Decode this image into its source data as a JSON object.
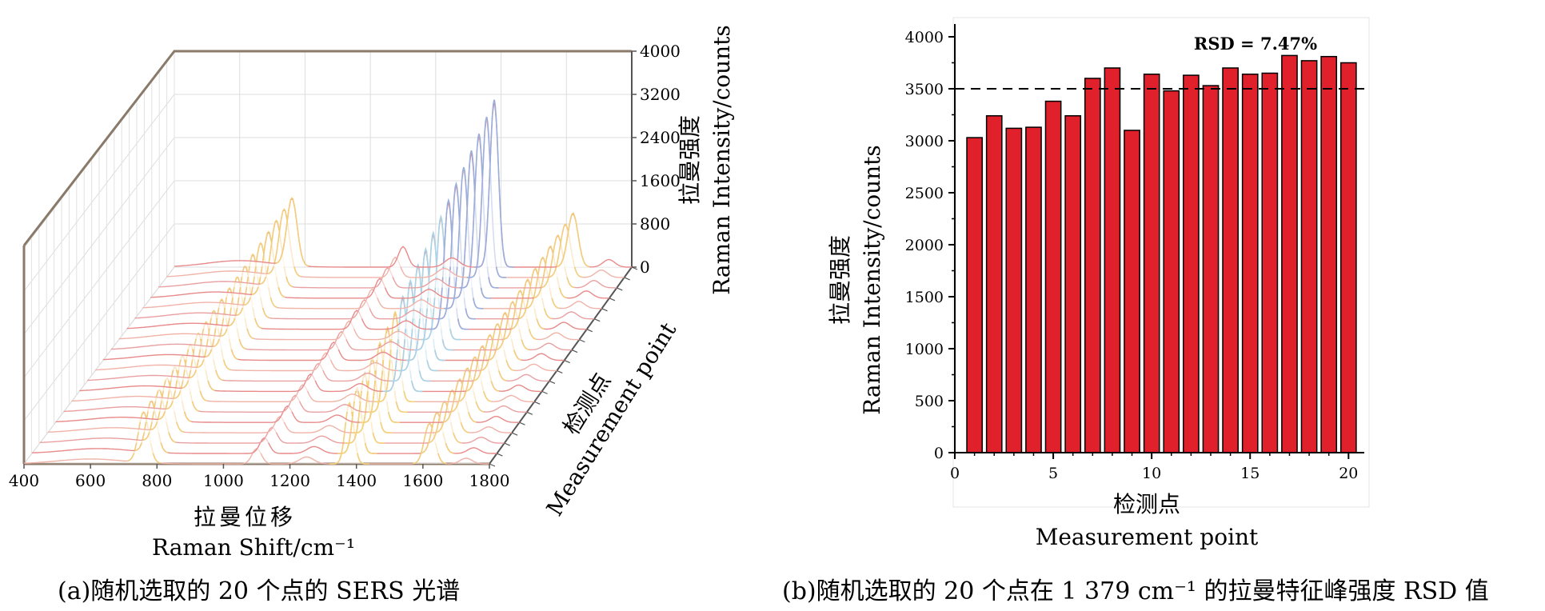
{
  "chart_data": [
    {
      "type": "waterfall-spectra",
      "x_tick_labels": [
        "400",
        "600",
        "800",
        "1000",
        "1200",
        "1400",
        "1600",
        "1800"
      ],
      "z_tick_labels": [
        "0",
        "800",
        "1600",
        "2400",
        "3200",
        "4000"
      ],
      "xlabel_cn": "拉曼位移",
      "xlabel_en": "Raman Shift/cm⁻¹",
      "depth_label_cn": "检测点",
      "depth_label_en": "Measurement point",
      "zlabel_cn": "拉曼强度",
      "zlabel_en": "Raman Intensity/counts",
      "n_spectra": 20,
      "xlim": [
        400,
        1800
      ],
      "zlim": [
        0,
        4000
      ],
      "peaks_cm": [
        760,
        1100,
        1379,
        1620
      ],
      "caption": "(a)随机选取的 20 个点的 SERS 光谱"
    },
    {
      "type": "bar",
      "x": [
        1,
        2,
        3,
        4,
        5,
        6,
        7,
        8,
        9,
        10,
        11,
        12,
        13,
        14,
        15,
        16,
        17,
        18,
        19,
        20
      ],
      "values": [
        3030,
        3240,
        3120,
        3130,
        3380,
        3240,
        3600,
        3700,
        3100,
        3640,
        3480,
        3630,
        3530,
        3700,
        3640,
        3650,
        3820,
        3770,
        3810,
        3750
      ],
      "x_ticks": [
        0,
        5,
        10,
        15,
        20
      ],
      "y_ticks": [
        0,
        500,
        1000,
        1500,
        2000,
        2500,
        3000,
        3500,
        4000
      ],
      "xlim": [
        0,
        20.8
      ],
      "ylim": [
        0,
        4200
      ],
      "xlabel_cn": "检测点",
      "xlabel_en": "Measurement point",
      "ylabel_cn": "拉曼强度",
      "ylabel_en": "Raman Intensity/counts",
      "reference_line": 3500,
      "annotation": "RSD = 7.47%",
      "bar_color": "#e0202a",
      "caption": "(b)随机选取的 20 个点在 1 379 cm⁻¹ 的拉曼特征峰强度 RSD 值"
    }
  ]
}
